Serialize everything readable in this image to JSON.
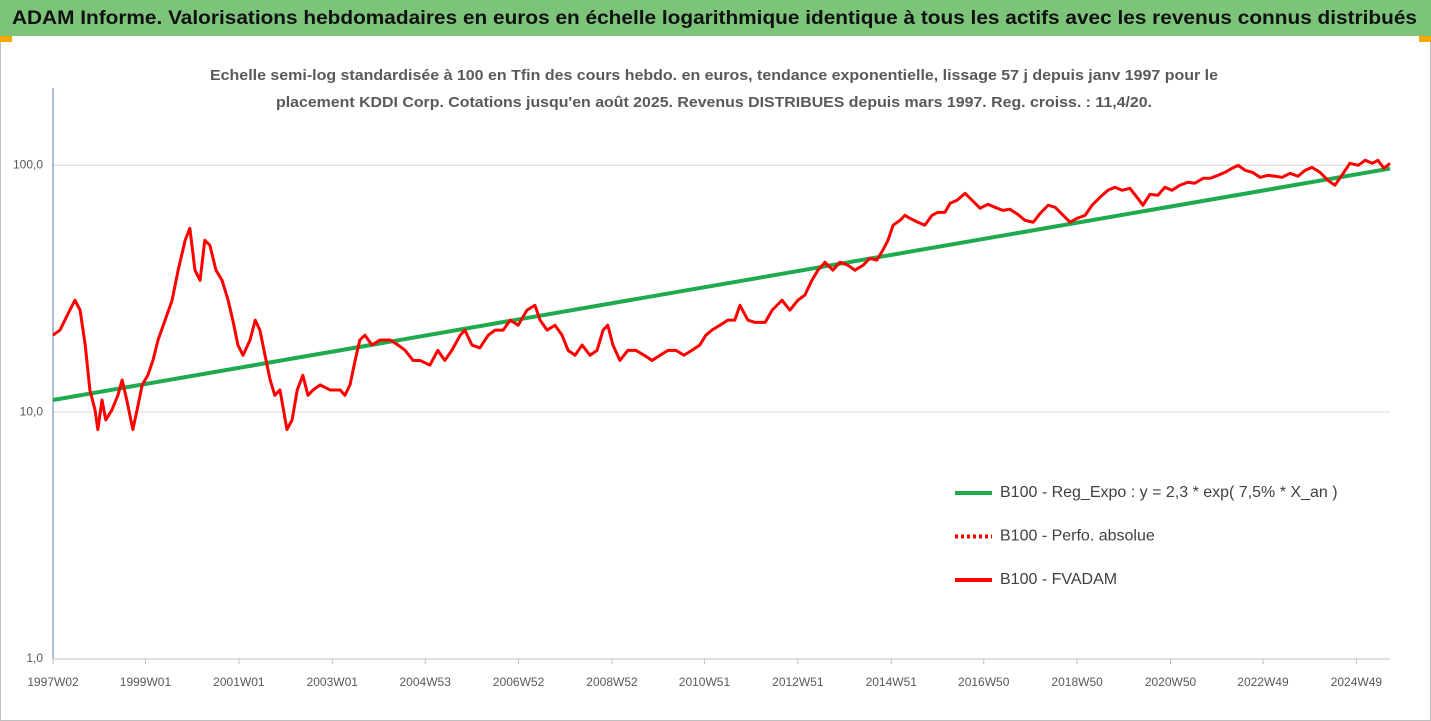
{
  "chart_data": {
    "type": "line",
    "title": "ADAM Informe. Valorisations hebdomadaires en euros en échelle logarithmique identique à tous les actifs avec les revenus connus distribués",
    "subtitle": [
      "Echelle semi-log standardisée à 100 en Tfin des cours hebdo. en euros, tendance exponentielle, lissage 57 j depuis janv 1997 pour le",
      "placement KDDI Corp. Cotations jusqu'en août 2025. Revenus DISTRIBUES depuis mars 1997. Reg. croiss. : 11,4/20."
    ],
    "log_scale": true,
    "grid": true,
    "legend": "lower right",
    "xlim": [
      1997.02,
      2025.65
    ],
    "xticks": [
      {
        "value": 1997.02,
        "label": "1997W02"
      },
      {
        "value": 1999.0,
        "label": "1999W01"
      },
      {
        "value": 2001.0,
        "label": "2001W01"
      },
      {
        "value": 2003.0,
        "label": "2003W01"
      },
      {
        "value": 2004.99,
        "label": "2004W53"
      },
      {
        "value": 2006.99,
        "label": "2006W52"
      },
      {
        "value": 2008.99,
        "label": "2008W52"
      },
      {
        "value": 2010.97,
        "label": "2010W51"
      },
      {
        "value": 2012.97,
        "label": "2012W51"
      },
      {
        "value": 2014.97,
        "label": "2014W51"
      },
      {
        "value": 2016.95,
        "label": "2016W50"
      },
      {
        "value": 2018.95,
        "label": "2018W50"
      },
      {
        "value": 2020.95,
        "label": "2020W50"
      },
      {
        "value": 2022.93,
        "label": "2022W49"
      },
      {
        "value": 2024.93,
        "label": "2024W49"
      }
    ],
    "ylim": [
      1,
      200
    ],
    "yticks": [
      {
        "value": 1,
        "label": "1,0"
      },
      {
        "value": 10,
        "label": "10,0"
      },
      {
        "value": 100,
        "label": "100,0"
      }
    ],
    "series": [
      {
        "name": "B100 - Reg_Expo : y = 2,3 * exp( 7,5% *  X_an )",
        "color": "#1faa4f",
        "style": "solid",
        "x": [
          1997.02,
          2025.65
        ],
        "values": [
          11.2,
          97
        ]
      },
      {
        "name": "B100 - Perfo. absolue",
        "color": "#ff0000",
        "style": "dotted"
      },
      {
        "name": "B100 - FVADAM",
        "color": "#ff0000",
        "style": "solid",
        "x": [
          1997.02,
          1997.17,
          1997.38,
          1997.49,
          1997.6,
          1997.71,
          1997.81,
          1997.92,
          1997.98,
          1998.07,
          1998.15,
          1998.28,
          1998.41,
          1998.5,
          1998.6,
          1998.73,
          1998.82,
          1998.93,
          1999.05,
          1999.16,
          1999.27,
          1999.42,
          1999.57,
          1999.7,
          1999.85,
          1999.95,
          2000.06,
          2000.17,
          2000.27,
          2000.38,
          2000.51,
          2000.64,
          2000.77,
          2000.87,
          2000.98,
          2001.09,
          2001.24,
          2001.35,
          2001.45,
          2001.56,
          2001.67,
          2001.77,
          2001.88,
          2002.03,
          2002.14,
          2002.25,
          2002.37,
          2002.48,
          2002.59,
          2002.74,
          2002.95,
          2003.17,
          2003.27,
          2003.38,
          2003.49,
          2003.59,
          2003.7,
          2003.85,
          2004.02,
          2004.24,
          2004.41,
          2004.56,
          2004.73,
          2004.88,
          2005.09,
          2005.26,
          2005.41,
          2005.56,
          2005.74,
          2005.84,
          2005.99,
          2006.16,
          2006.34,
          2006.49,
          2006.66,
          2006.81,
          2006.98,
          2007.17,
          2007.34,
          2007.45,
          2007.6,
          2007.77,
          2007.92,
          2008.05,
          2008.2,
          2008.35,
          2008.52,
          2008.67,
          2008.8,
          2008.9,
          2009.01,
          2009.16,
          2009.33,
          2009.5,
          2009.68,
          2009.85,
          2010.02,
          2010.19,
          2010.36,
          2010.53,
          2010.7,
          2010.87,
          2011.0,
          2011.13,
          2011.3,
          2011.47,
          2011.62,
          2011.73,
          2011.9,
          2012.05,
          2012.27,
          2012.42,
          2012.63,
          2012.8,
          2012.97,
          2013.12,
          2013.27,
          2013.4,
          2013.55,
          2013.72,
          2013.87,
          2014.04,
          2014.19,
          2014.37,
          2014.51,
          2014.66,
          2014.79,
          2014.9,
          2015.01,
          2015.16,
          2015.26,
          2015.37,
          2015.54,
          2015.69,
          2015.84,
          2015.97,
          2016.12,
          2016.23,
          2016.38,
          2016.55,
          2016.7,
          2016.87,
          2017.04,
          2017.19,
          2017.36,
          2017.51,
          2017.68,
          2017.83,
          2018.01,
          2018.16,
          2018.33,
          2018.48,
          2018.65,
          2018.8,
          2018.95,
          2019.12,
          2019.27,
          2019.44,
          2019.61,
          2019.76,
          2019.91,
          2020.08,
          2020.25,
          2020.36,
          2020.51,
          2020.68,
          2020.83,
          2020.98,
          2021.15,
          2021.32,
          2021.47,
          2021.65,
          2021.8,
          2021.97,
          2022.12,
          2022.27,
          2022.4,
          2022.55,
          2022.7,
          2022.87,
          2023.04,
          2023.19,
          2023.34,
          2023.51,
          2023.68,
          2023.83,
          2023.98,
          2024.15,
          2024.32,
          2024.47,
          2024.62,
          2024.79,
          2024.97,
          2025.12,
          2025.27,
          2025.39,
          2025.52,
          2025.65
        ],
        "values": [
          20.5,
          21.5,
          25.9,
          28.4,
          25.9,
          18.7,
          12.3,
          10.2,
          8.5,
          11.2,
          9.3,
          10.2,
          11.7,
          13.5,
          11.2,
          8.5,
          10.2,
          12.9,
          14.1,
          16.2,
          19.6,
          23.6,
          28.4,
          37.6,
          49.7,
          55.6,
          37.6,
          34.2,
          49.7,
          47.4,
          37.6,
          34.2,
          28.4,
          23.6,
          18.7,
          17.0,
          19.6,
          23.6,
          21.5,
          17.0,
          13.5,
          11.7,
          12.3,
          8.5,
          9.3,
          12.3,
          14.1,
          11.7,
          12.3,
          12.9,
          12.3,
          12.3,
          11.7,
          12.9,
          16.2,
          19.6,
          20.5,
          18.7,
          19.6,
          19.6,
          18.7,
          17.8,
          16.2,
          16.2,
          15.5,
          17.8,
          16.2,
          17.8,
          20.5,
          21.5,
          18.7,
          18.2,
          20.5,
          21.5,
          21.5,
          23.6,
          22.5,
          25.9,
          27.1,
          23.6,
          21.5,
          22.5,
          20.5,
          17.8,
          17.0,
          18.7,
          17.0,
          17.8,
          21.5,
          22.5,
          18.7,
          16.2,
          17.8,
          17.8,
          17.0,
          16.2,
          17.0,
          17.8,
          17.8,
          17.0,
          17.8,
          18.7,
          20.5,
          21.5,
          22.5,
          23.6,
          23.6,
          27.1,
          23.6,
          23.1,
          23.1,
          25.9,
          28.4,
          25.9,
          28.4,
          29.8,
          34.2,
          37.6,
          40.5,
          37.6,
          40.5,
          39.4,
          37.6,
          39.4,
          42.0,
          41.3,
          45.3,
          49.7,
          57.2,
          59.9,
          62.7,
          61.0,
          58.8,
          57.2,
          62.7,
          64.5,
          64.5,
          70.2,
          72.2,
          77.0,
          72.2,
          67.0,
          69.5,
          67.6,
          65.7,
          66.4,
          63.3,
          59.9,
          58.8,
          63.9,
          68.9,
          67.6,
          62.7,
          58.8,
          61.0,
          62.7,
          68.9,
          74.2,
          79.2,
          81.5,
          79.2,
          80.7,
          73.5,
          68.9,
          76.3,
          75.6,
          81.5,
          79.2,
          83.0,
          85.4,
          84.6,
          88.6,
          88.6,
          91.1,
          93.7,
          97.3,
          100,
          95.4,
          93.7,
          89.4,
          91.1,
          90.3,
          89.4,
          92.8,
          90.3,
          95.4,
          98.1,
          93.7,
          87.0,
          83.0,
          91.1,
          101.9,
          100,
          104.8,
          101.9,
          104.8,
          97.3,
          101.9
        ]
      }
    ]
  }
}
